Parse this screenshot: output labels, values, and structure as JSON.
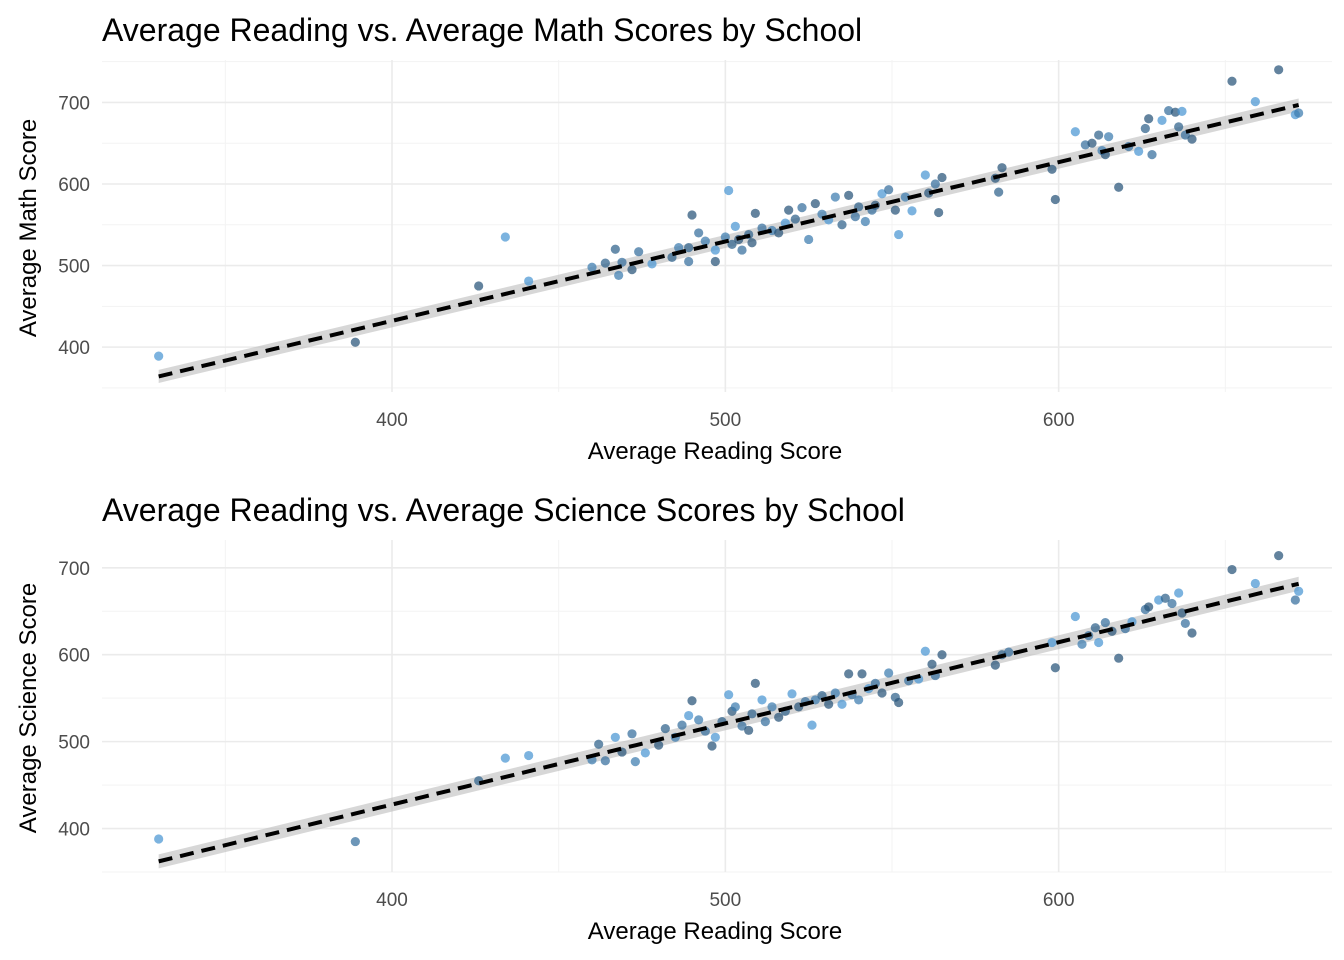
{
  "colors": {
    "point_low": "#132B43",
    "point_high": "#56B1F7",
    "band": "#bdbdbd",
    "fit_line": "#000000",
    "grid": "#ebebeb"
  },
  "chart_data": [
    {
      "type": "scatter",
      "title": "Average Reading vs. Average Math Scores by School",
      "xlabel": "Average Reading Score",
      "ylabel": "Average Math Score",
      "xlim": [
        313,
        682
      ],
      "ylim": [
        345,
        752
      ],
      "xticks": [
        400,
        500,
        600
      ],
      "yticks": [
        400,
        500,
        600,
        700
      ],
      "fit": {
        "slope": 0.973,
        "intercept": 43,
        "x_range": [
          330,
          672
        ],
        "band_halfwidth": 8
      },
      "points": [
        [
          330,
          389,
          0.8
        ],
        [
          389,
          406,
          0.3
        ],
        [
          426,
          475,
          0.3
        ],
        [
          434,
          535,
          0.8
        ],
        [
          441,
          481,
          0.8
        ],
        [
          460,
          498,
          0.6
        ],
        [
          464,
          503,
          0.4
        ],
        [
          467,
          520,
          0.4
        ],
        [
          468,
          488,
          0.6
        ],
        [
          469,
          504,
          0.5
        ],
        [
          472,
          495,
          0.3
        ],
        [
          474,
          517,
          0.5
        ],
        [
          478,
          502,
          0.8
        ],
        [
          484,
          510,
          0.4
        ],
        [
          486,
          522,
          0.6
        ],
        [
          489,
          522,
          0.4
        ],
        [
          489,
          505,
          0.5
        ],
        [
          490,
          562,
          0.3
        ],
        [
          492,
          540,
          0.5
        ],
        [
          494,
          530,
          0.6
        ],
        [
          497,
          519,
          0.8
        ],
        [
          497,
          505,
          0.3
        ],
        [
          500,
          535,
          0.6
        ],
        [
          501,
          592,
          0.8
        ],
        [
          502,
          526,
          0.4
        ],
        [
          503,
          548,
          0.8
        ],
        [
          504,
          532,
          0.3
        ],
        [
          505,
          519,
          0.5
        ],
        [
          507,
          538,
          0.4
        ],
        [
          508,
          528,
          0.3
        ],
        [
          509,
          564,
          0.3
        ],
        [
          511,
          546,
          0.5
        ],
        [
          514,
          543,
          0.6
        ],
        [
          516,
          540,
          0.3
        ],
        [
          518,
          552,
          0.8
        ],
        [
          519,
          568,
          0.3
        ],
        [
          521,
          557,
          0.4
        ],
        [
          523,
          571,
          0.5
        ],
        [
          525,
          532,
          0.6
        ],
        [
          527,
          576,
          0.3
        ],
        [
          529,
          563,
          0.6
        ],
        [
          531,
          556,
          0.8
        ],
        [
          533,
          584,
          0.6
        ],
        [
          535,
          550,
          0.4
        ],
        [
          537,
          586,
          0.3
        ],
        [
          539,
          560,
          0.5
        ],
        [
          540,
          572,
          0.4
        ],
        [
          542,
          554,
          0.6
        ],
        [
          544,
          568,
          0.5
        ],
        [
          545,
          574,
          0.3
        ],
        [
          547,
          588,
          0.8
        ],
        [
          549,
          593,
          0.5
        ],
        [
          551,
          568,
          0.3
        ],
        [
          552,
          538,
          0.8
        ],
        [
          554,
          584,
          0.6
        ],
        [
          556,
          567,
          0.8
        ],
        [
          560,
          611,
          0.8
        ],
        [
          561,
          589,
          0.3
        ],
        [
          563,
          600,
          0.5
        ],
        [
          565,
          608,
          0.3
        ],
        [
          564,
          565,
          0.3
        ],
        [
          581,
          607,
          0.3
        ],
        [
          582,
          590,
          0.4
        ],
        [
          583,
          620,
          0.3
        ],
        [
          598,
          618,
          0.3
        ],
        [
          599,
          581,
          0.3
        ],
        [
          605,
          664,
          0.8
        ],
        [
          608,
          648,
          0.5
        ],
        [
          610,
          650,
          0.3
        ],
        [
          612,
          660,
          0.4
        ],
        [
          613,
          641,
          0.6
        ],
        [
          614,
          636,
          0.3
        ],
        [
          615,
          658,
          0.6
        ],
        [
          618,
          596,
          0.3
        ],
        [
          621,
          646,
          0.5
        ],
        [
          624,
          640,
          0.8
        ],
        [
          626,
          668,
          0.4
        ],
        [
          627,
          680,
          0.3
        ],
        [
          628,
          636,
          0.5
        ],
        [
          631,
          678,
          0.8
        ],
        [
          633,
          690,
          0.5
        ],
        [
          635,
          688,
          0.3
        ],
        [
          636,
          670,
          0.4
        ],
        [
          637,
          689,
          0.8
        ],
        [
          638,
          660,
          0.5
        ],
        [
          640,
          655,
          0.3
        ],
        [
          652,
          726,
          0.3
        ],
        [
          659,
          701,
          0.8
        ],
        [
          666,
          740,
          0.3
        ],
        [
          671,
          685,
          0.8
        ],
        [
          672,
          687,
          0.6
        ]
      ]
    },
    {
      "type": "scatter",
      "title": "Average Reading vs. Average Science Scores by School",
      "xlabel": "Average Reading Score",
      "ylabel": "Average Science Score",
      "xlim": [
        313,
        682
      ],
      "ylim": [
        350,
        732
      ],
      "xticks": [
        400,
        500,
        600
      ],
      "yticks": [
        400,
        500,
        600,
        700
      ],
      "fit": {
        "slope": 0.934,
        "intercept": 54,
        "x_range": [
          330,
          672
        ],
        "band_halfwidth": 8
      },
      "points": [
        [
          330,
          388,
          0.8
        ],
        [
          389,
          385,
          0.5
        ],
        [
          426,
          455,
          0.4
        ],
        [
          434,
          481,
          0.8
        ],
        [
          441,
          484,
          0.8
        ],
        [
          460,
          479,
          0.6
        ],
        [
          462,
          497,
          0.4
        ],
        [
          464,
          478,
          0.5
        ],
        [
          467,
          505,
          0.8
        ],
        [
          469,
          488,
          0.3
        ],
        [
          472,
          509,
          0.5
        ],
        [
          473,
          477,
          0.6
        ],
        [
          476,
          487,
          0.8
        ],
        [
          480,
          496,
          0.3
        ],
        [
          482,
          515,
          0.4
        ],
        [
          485,
          505,
          0.6
        ],
        [
          487,
          519,
          0.5
        ],
        [
          489,
          530,
          0.8
        ],
        [
          490,
          547,
          0.3
        ],
        [
          492,
          525,
          0.6
        ],
        [
          494,
          512,
          0.5
        ],
        [
          496,
          495,
          0.3
        ],
        [
          497,
          505,
          0.8
        ],
        [
          499,
          523,
          0.4
        ],
        [
          501,
          554,
          0.8
        ],
        [
          502,
          535,
          0.3
        ],
        [
          503,
          540,
          0.6
        ],
        [
          505,
          518,
          0.5
        ],
        [
          507,
          513,
          0.3
        ],
        [
          508,
          532,
          0.4
        ],
        [
          509,
          567,
          0.3
        ],
        [
          511,
          548,
          0.8
        ],
        [
          512,
          523,
          0.5
        ],
        [
          514,
          540,
          0.6
        ],
        [
          516,
          528,
          0.3
        ],
        [
          518,
          535,
          0.4
        ],
        [
          520,
          555,
          0.8
        ],
        [
          522,
          540,
          0.3
        ],
        [
          524,
          546,
          0.5
        ],
        [
          526,
          519,
          0.8
        ],
        [
          527,
          548,
          0.6
        ],
        [
          529,
          553,
          0.4
        ],
        [
          531,
          543,
          0.3
        ],
        [
          533,
          556,
          0.6
        ],
        [
          535,
          543,
          0.8
        ],
        [
          537,
          578,
          0.3
        ],
        [
          538,
          554,
          0.5
        ],
        [
          540,
          548,
          0.6
        ],
        [
          541,
          578,
          0.3
        ],
        [
          543,
          561,
          0.8
        ],
        [
          545,
          567,
          0.5
        ],
        [
          547,
          556,
          0.3
        ],
        [
          549,
          579,
          0.6
        ],
        [
          551,
          551,
          0.4
        ],
        [
          552,
          545,
          0.3
        ],
        [
          555,
          570,
          0.5
        ],
        [
          558,
          572,
          0.8
        ],
        [
          560,
          604,
          0.8
        ],
        [
          562,
          589,
          0.3
        ],
        [
          563,
          576,
          0.5
        ],
        [
          565,
          600,
          0.3
        ],
        [
          581,
          588,
          0.3
        ],
        [
          583,
          600,
          0.4
        ],
        [
          585,
          603,
          0.5
        ],
        [
          598,
          614,
          0.8
        ],
        [
          599,
          585,
          0.3
        ],
        [
          605,
          644,
          0.8
        ],
        [
          607,
          612,
          0.6
        ],
        [
          609,
          622,
          0.5
        ],
        [
          611,
          631,
          0.4
        ],
        [
          612,
          614,
          0.8
        ],
        [
          614,
          637,
          0.5
        ],
        [
          616,
          627,
          0.3
        ],
        [
          618,
          596,
          0.3
        ],
        [
          620,
          630,
          0.5
        ],
        [
          622,
          638,
          0.8
        ],
        [
          626,
          652,
          0.5
        ],
        [
          627,
          655,
          0.3
        ],
        [
          630,
          663,
          0.8
        ],
        [
          632,
          665,
          0.4
        ],
        [
          634,
          659,
          0.5
        ],
        [
          636,
          671,
          0.8
        ],
        [
          637,
          648,
          0.3
        ],
        [
          638,
          636,
          0.5
        ],
        [
          640,
          625,
          0.3
        ],
        [
          652,
          698,
          0.3
        ],
        [
          659,
          682,
          0.8
        ],
        [
          666,
          714,
          0.3
        ],
        [
          671,
          663,
          0.5
        ],
        [
          672,
          673,
          0.8
        ]
      ]
    }
  ]
}
